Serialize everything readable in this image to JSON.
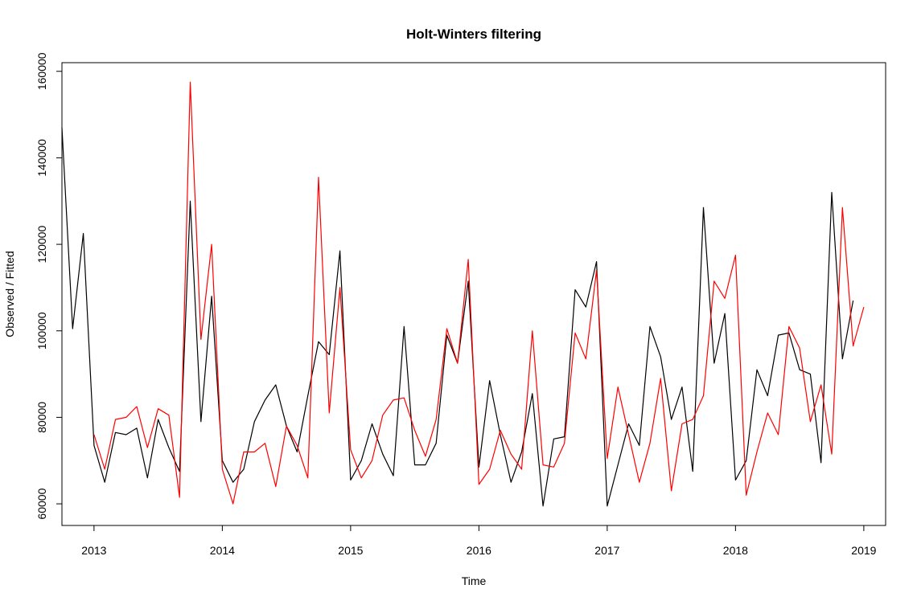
{
  "chart_data": {
    "type": "line",
    "title": "Holt-Winters filtering",
    "xlabel": "Time",
    "ylabel": "Observed / Fitted",
    "xlim": [
      2012.75,
      2019.17
    ],
    "ylim": [
      55000,
      162000
    ],
    "x_ticks": [
      2013,
      2014,
      2015,
      2016,
      2017,
      2018,
      2019
    ],
    "y_ticks": [
      60000,
      80000,
      100000,
      120000,
      140000,
      160000
    ],
    "grid": false,
    "legend": "none",
    "series": [
      {
        "color": "#000000",
        "start": 2012.75,
        "step": 0.0833333,
        "values": [
          147000,
          100500,
          122500,
          73500,
          65000,
          76500,
          76000,
          77500,
          66000,
          79500,
          73000,
          67500,
          130000,
          79000,
          108000,
          70000,
          65000,
          68000,
          79000,
          84000,
          87500,
          78000,
          72000,
          85000,
          97500,
          94500,
          118500,
          65500,
          70000,
          78500,
          71500,
          66500,
          101000,
          69000,
          69000,
          74000,
          99000,
          92500,
          111500,
          68500,
          88500,
          76000,
          65000,
          72000,
          85500,
          59500,
          75000,
          75500,
          109500,
          105500,
          116000,
          59500,
          69000,
          78500,
          73500,
          101000,
          94000,
          79500,
          87000,
          67500,
          128500,
          92500,
          104000,
          65500,
          70000,
          91000,
          85000,
          99000,
          99500,
          91000,
          90000,
          69500,
          132000,
          93500,
          107000
        ]
      },
      {
        "color": "#ff0000",
        "start": 2013.0,
        "step": 0.0833333,
        "values": [
          76000,
          68000,
          79500,
          80000,
          82500,
          73000,
          82000,
          80500,
          61500,
          157500,
          98000,
          120000,
          68000,
          60000,
          72000,
          72000,
          74000,
          64000,
          78000,
          73500,
          66000,
          135500,
          81000,
          110000,
          72500,
          66000,
          70000,
          80500,
          84000,
          84500,
          77000,
          71000,
          79500,
          100500,
          92500,
          116500,
          64500,
          68000,
          77000,
          71500,
          68000,
          100000,
          69000,
          68500,
          74000,
          99500,
          93500,
          114000,
          70500,
          87000,
          76000,
          65000,
          74000,
          89000,
          63000,
          78500,
          79500,
          85000,
          111500,
          107500,
          117500,
          62000,
          72000,
          81000,
          76000,
          101000,
          96000,
          79000,
          87500,
          71500,
          128500,
          96500,
          105500
        ]
      }
    ]
  }
}
